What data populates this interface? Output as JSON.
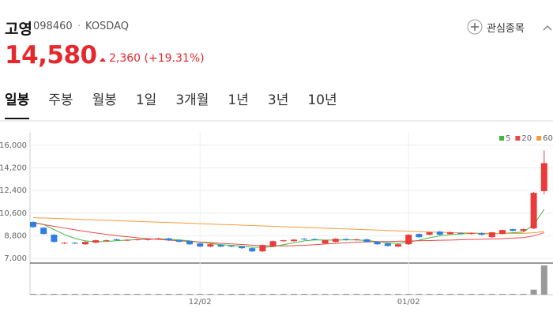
{
  "header": {
    "name": "고영",
    "code": "098460",
    "separator": "·",
    "market": "KOSDAQ",
    "favorite": "관심종목",
    "price": "14,580",
    "change": "2,360",
    "change_rate": "(+19.31%)"
  },
  "tabs": [
    "일봉",
    "주봉",
    "월봉",
    "1일",
    "3개월",
    "1년",
    "3년",
    "10년"
  ],
  "chart_data": {
    "type": "candlestick",
    "categories": [
      null,
      null,
      null,
      null,
      null,
      null,
      null,
      null,
      null,
      null,
      null,
      null,
      null,
      null,
      null,
      null,
      "12/02",
      null,
      null,
      null,
      null,
      null,
      null,
      null,
      null,
      null,
      null,
      null,
      null,
      null,
      null,
      null,
      null,
      null,
      null,
      null,
      "01/02",
      null,
      null,
      null,
      null,
      null,
      null,
      null,
      null,
      null,
      null,
      null,
      null,
      null
    ],
    "open": [
      9900,
      9450,
      8890,
      8200,
      8250,
      8130,
      8260,
      8400,
      8520,
      8430,
      8480,
      8480,
      8550,
      8600,
      8450,
      8380,
      8200,
      7950,
      8080,
      8000,
      7950,
      7820,
      7570,
      7950,
      8380,
      8380,
      8570,
      8550,
      8200,
      8320,
      8550,
      8470,
      8520,
      8320,
      8200,
      7950,
      8130,
      8950,
      8890,
      9140,
      8950,
      9020,
      8950,
      9020,
      8700,
      8950,
      9330,
      9200,
      9390,
      12360
    ],
    "close": [
      9500,
      8950,
      8320,
      8250,
      8200,
      8320,
      8450,
      8450,
      8480,
      8480,
      8520,
      8550,
      8600,
      8450,
      8330,
      8130,
      7950,
      8130,
      7950,
      7950,
      7820,
      7570,
      8070,
      8380,
      8450,
      8500,
      8520,
      8500,
      8450,
      8570,
      8470,
      8520,
      8320,
      8130,
      8000,
      8130,
      8890,
      8700,
      9080,
      8890,
      9080,
      8950,
      9020,
      8890,
      9080,
      9260,
      9200,
      9330,
      12220,
      14580
    ],
    "high": [
      9950,
      9500,
      8940,
      8300,
      8300,
      8370,
      8500,
      8500,
      8570,
      8530,
      8570,
      8600,
      8650,
      8650,
      8500,
      8430,
      8250,
      8180,
      8130,
      8050,
      8000,
      7870,
      8120,
      8430,
      8500,
      8550,
      8620,
      8600,
      8500,
      8620,
      8600,
      8570,
      8570,
      8370,
      8250,
      8180,
      8940,
      9000,
      9130,
      9190,
      9130,
      9070,
      9070,
      9070,
      9130,
      9310,
      9380,
      9380,
      12300,
      15600
    ],
    "low": [
      9450,
      8900,
      8270,
      8150,
      8150,
      8080,
      8210,
      8350,
      8430,
      8380,
      8430,
      8430,
      8500,
      8400,
      8280,
      8080,
      7900,
      7900,
      7900,
      7900,
      7770,
      7520,
      7520,
      7900,
      8330,
      8330,
      8470,
      8450,
      8150,
      8270,
      8420,
      8420,
      8270,
      8080,
      7950,
      7900,
      8080,
      8650,
      8840,
      8840,
      8900,
      8900,
      8900,
      8840,
      8650,
      8900,
      9150,
      9150,
      9340,
      12100
    ],
    "volume": [
      10000,
      10000,
      10000,
      10000,
      10000,
      10000,
      10000,
      10000,
      10000,
      10000,
      10000,
      10000,
      10000,
      10000,
      10000,
      10000,
      10000,
      10000,
      10000,
      10000,
      10000,
      10000,
      10000,
      10000,
      10000,
      10000,
      10000,
      10000,
      10000,
      10000,
      10000,
      10000,
      10000,
      10000,
      10000,
      10000,
      10000,
      10000,
      10000,
      10000,
      10000,
      10000,
      10000,
      10000,
      10000,
      10000,
      10000,
      10000,
      60000,
      350000
    ],
    "up_color": "#ea3a3a",
    "down_color": "#2e7fe0",
    "volume_color": "#999999",
    "series": [
      {
        "name": "5",
        "color": "#3cb93c",
        "values": [
          9900,
          9700,
          9300,
          8900,
          8600,
          8400,
          8330,
          8350,
          8420,
          8470,
          8500,
          8520,
          8550,
          8540,
          8480,
          8400,
          8300,
          8200,
          8100,
          8050,
          7980,
          7900,
          7880,
          7950,
          8100,
          8250,
          8400,
          8480,
          8470,
          8470,
          8480,
          8480,
          8430,
          8350,
          8250,
          8200,
          8300,
          8450,
          8650,
          8800,
          8900,
          8950,
          9000,
          8980,
          8970,
          8990,
          9050,
          9100,
          9700,
          10900
        ]
      },
      {
        "name": "20",
        "color": "#e84a4a",
        "values": [
          9850,
          9700,
          9560,
          9420,
          9280,
          9150,
          9030,
          8920,
          8820,
          8730,
          8650,
          8580,
          8520,
          8460,
          8410,
          8360,
          8310,
          8260,
          8210,
          8160,
          8110,
          8060,
          8020,
          8000,
          8000,
          8020,
          8050,
          8100,
          8150,
          8200,
          8250,
          8300,
          8320,
          8340,
          8350,
          8370,
          8390,
          8410,
          8430,
          8450,
          8470,
          8490,
          8510,
          8530,
          8550,
          8580,
          8620,
          8660,
          8800,
          9050
        ]
      },
      {
        "name": "60",
        "color": "#f59a3c",
        "values": [
          10250,
          10220,
          10190,
          10160,
          10130,
          10100,
          10070,
          10040,
          10010,
          9980,
          9950,
          9920,
          9890,
          9860,
          9830,
          9800,
          9770,
          9740,
          9710,
          9680,
          9650,
          9620,
          9590,
          9560,
          9530,
          9500,
          9470,
          9440,
          9410,
          9380,
          9350,
          9320,
          9290,
          9260,
          9230,
          9200,
          9170,
          9140,
          9110,
          9090,
          9070,
          9050,
          9030,
          9010,
          9000,
          8990,
          8990,
          9000,
          9050,
          9150
        ]
      }
    ],
    "ylim": [
      6700,
      17000
    ],
    "yticks": [
      {
        "value": 7000,
        "label": "7,000"
      },
      {
        "value": 8800,
        "label": "8,800"
      },
      {
        "value": 10600,
        "label": "10,600"
      },
      {
        "value": 12400,
        "label": "12,400"
      },
      {
        "value": 14200,
        "label": "14,200"
      },
      {
        "value": 16000,
        "label": "16,000"
      }
    ],
    "grid": true,
    "legend": "top-right"
  }
}
